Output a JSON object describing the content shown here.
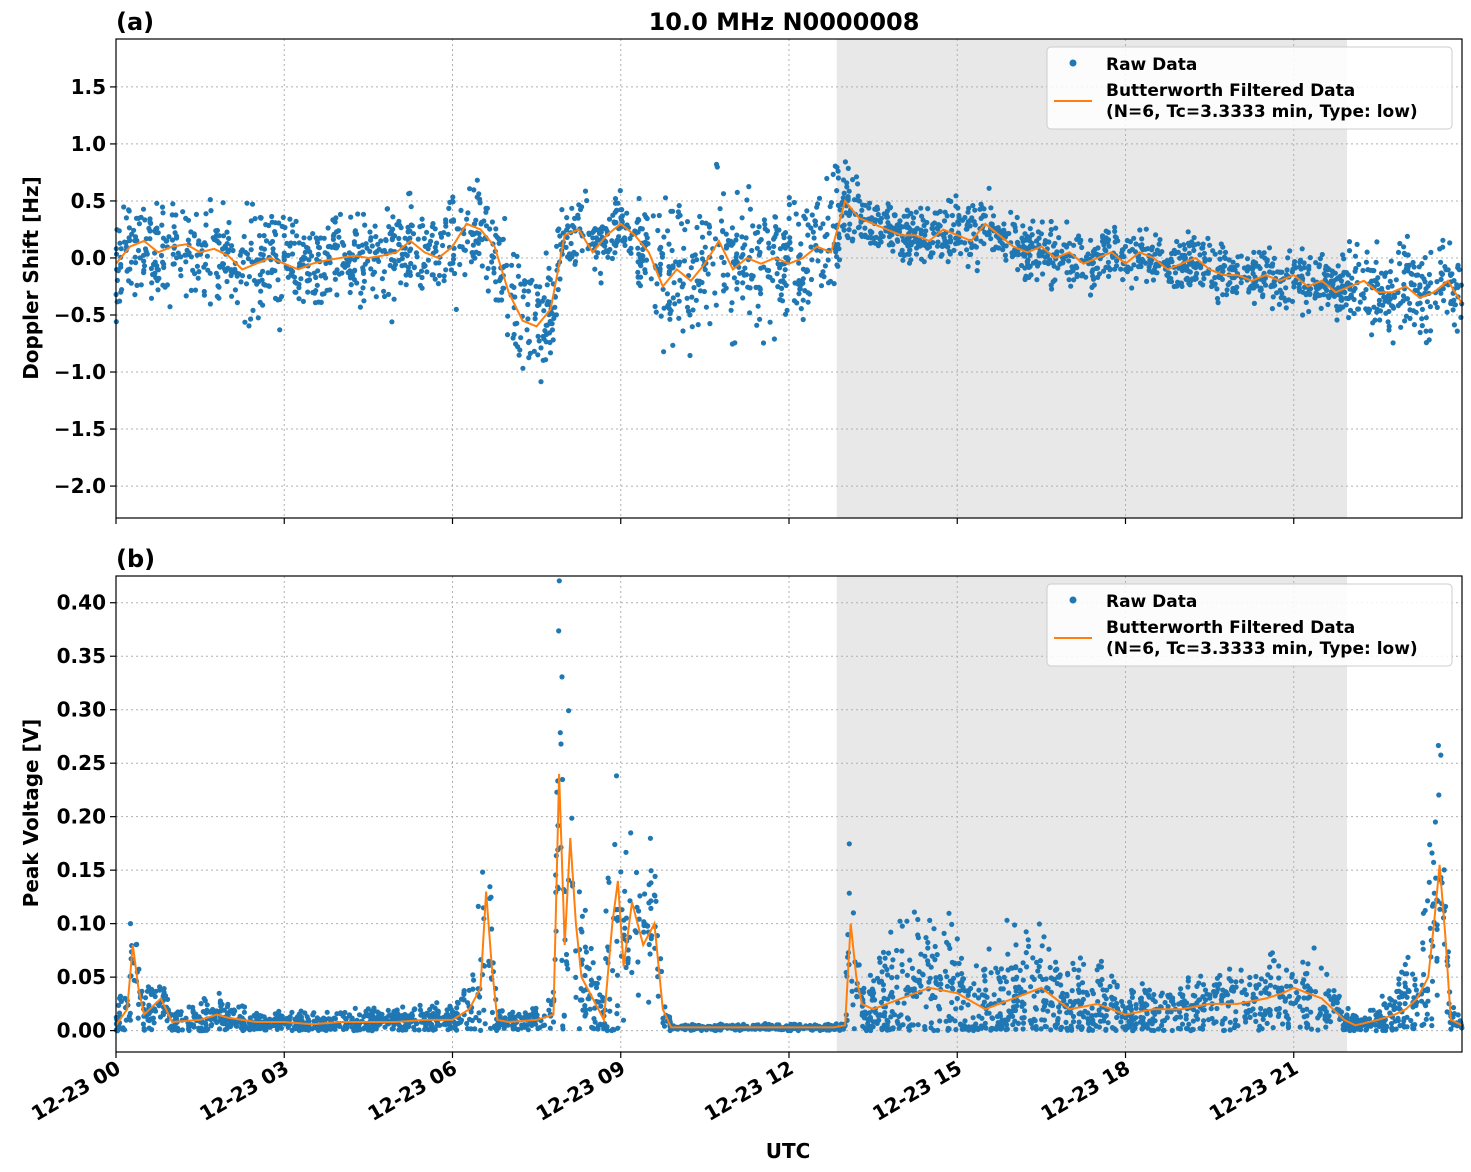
{
  "figure": {
    "title": "10.0 MHz N0000008",
    "xlabel": "UTC"
  },
  "colors": {
    "raw": "#1f77b4",
    "filtered": "#ff7f0e",
    "shade": "#e8e8e8",
    "grid": "#b0b0b0"
  },
  "legend": {
    "raw_label": "Raw Data",
    "filtered_label_line1": "Butterworth Filtered Data",
    "filtered_label_line2": "(N=6, Tc=3.3333 min, Type: low)"
  },
  "chart_data": [
    {
      "type": "scatter",
      "panel_label": "(a)",
      "ylabel": "Doppler Shift [Hz]",
      "xlim": [
        0,
        24
      ],
      "ylim": [
        -2.28,
        1.92
      ],
      "y_ticks": [
        1.5,
        1.0,
        0.5,
        0.0,
        -0.5,
        -1.0,
        -1.5,
        -2.0
      ],
      "y_tick_labels": [
        "1.5",
        "1.0",
        "0.5",
        "0.0",
        "−0.5",
        "−1.0",
        "−1.5",
        "−2.0"
      ],
      "x_ticks": [
        0,
        3,
        6,
        9,
        12,
        15,
        18,
        21
      ],
      "shaded_interval": [
        12.85,
        21.95
      ],
      "grid": true,
      "legend_position": "top-right",
      "filtered": {
        "x": [
          0,
          0.25,
          0.5,
          0.75,
          1,
          1.25,
          1.5,
          1.75,
          2,
          2.25,
          2.5,
          2.75,
          3,
          3.25,
          3.5,
          3.75,
          4,
          4.25,
          4.5,
          4.75,
          5,
          5.25,
          5.5,
          5.75,
          6,
          6.25,
          6.5,
          6.75,
          7,
          7.25,
          7.5,
          7.75,
          8,
          8.25,
          8.5,
          8.75,
          9,
          9.25,
          9.5,
          9.75,
          10,
          10.25,
          10.5,
          10.75,
          11,
          11.25,
          11.5,
          11.75,
          12,
          12.25,
          12.5,
          12.75,
          13,
          13.25,
          13.5,
          13.75,
          14,
          14.25,
          14.5,
          14.75,
          15,
          15.25,
          15.5,
          15.75,
          16,
          16.25,
          16.5,
          16.75,
          17,
          17.25,
          17.5,
          17.75,
          18,
          18.25,
          18.5,
          18.75,
          19,
          19.25,
          19.5,
          19.75,
          20,
          20.25,
          20.5,
          20.75,
          21,
          21.25,
          21.5,
          21.75,
          22,
          22.25,
          22.5,
          22.75,
          23,
          23.25,
          23.5,
          23.75,
          24
        ],
        "y": [
          -0.05,
          0.1,
          0.15,
          0.05,
          0.1,
          0.12,
          0.05,
          0.08,
          0.02,
          -0.1,
          -0.05,
          0.0,
          -0.05,
          -0.1,
          -0.05,
          -0.02,
          0.0,
          0.02,
          0.0,
          0.02,
          0.05,
          0.15,
          0.05,
          0.0,
          0.1,
          0.3,
          0.25,
          0.1,
          -0.3,
          -0.55,
          -0.6,
          -0.45,
          0.2,
          0.25,
          0.05,
          0.2,
          0.3,
          0.2,
          0.05,
          -0.25,
          -0.1,
          -0.2,
          -0.05,
          0.15,
          -0.1,
          0.0,
          -0.05,
          0.0,
          -0.05,
          0.0,
          0.1,
          0.05,
          0.5,
          0.35,
          0.3,
          0.25,
          0.2,
          0.2,
          0.15,
          0.25,
          0.2,
          0.15,
          0.3,
          0.2,
          0.1,
          0.05,
          0.1,
          0.0,
          0.05,
          -0.05,
          0.0,
          0.05,
          -0.05,
          0.05,
          0.0,
          -0.1,
          -0.05,
          0.0,
          -0.1,
          -0.15,
          -0.15,
          -0.2,
          -0.15,
          -0.2,
          -0.15,
          -0.25,
          -0.2,
          -0.3,
          -0.25,
          -0.2,
          -0.3,
          -0.3,
          -0.25,
          -0.35,
          -0.3,
          -0.2,
          -0.4
        ],
        "spread": [
          0.3,
          0.3,
          0.35,
          0.3,
          0.35,
          0.3,
          0.3,
          0.35,
          0.3,
          0.35,
          0.35,
          0.3,
          0.4,
          0.35,
          0.3,
          0.3,
          0.3,
          0.3,
          0.3,
          0.35,
          0.35,
          0.3,
          0.3,
          0.3,
          0.35,
          0.35,
          0.3,
          0.35,
          0.4,
          0.4,
          0.4,
          0.35,
          0.25,
          0.25,
          0.25,
          0.2,
          0.2,
          0.25,
          0.3,
          0.45,
          0.5,
          0.5,
          0.55,
          0.5,
          0.5,
          0.45,
          0.45,
          0.4,
          0.45,
          0.4,
          0.45,
          0.45,
          0.3,
          0.2,
          0.2,
          0.2,
          0.2,
          0.2,
          0.2,
          0.2,
          0.2,
          0.2,
          0.2,
          0.2,
          0.2,
          0.2,
          0.2,
          0.2,
          0.2,
          0.18,
          0.18,
          0.18,
          0.18,
          0.18,
          0.18,
          0.18,
          0.18,
          0.18,
          0.18,
          0.18,
          0.18,
          0.18,
          0.18,
          0.18,
          0.2,
          0.2,
          0.2,
          0.2,
          0.25,
          0.25,
          0.3,
          0.3,
          0.3,
          0.3,
          0.3,
          0.3,
          0.35
        ]
      }
    },
    {
      "type": "scatter",
      "panel_label": "(b)",
      "ylabel": "Peak Voltage [V]",
      "xlim": [
        0,
        24
      ],
      "ylim": [
        -0.02,
        0.425
      ],
      "y_ticks": [
        0.4,
        0.35,
        0.3,
        0.25,
        0.2,
        0.15,
        0.1,
        0.05,
        0.0
      ],
      "y_tick_labels": [
        "0.40",
        "0.35",
        "0.30",
        "0.25",
        "0.20",
        "0.15",
        "0.10",
        "0.05",
        "0.00"
      ],
      "x_ticks": [
        0,
        3,
        6,
        9,
        12,
        15,
        18,
        21
      ],
      "x_tick_labels": [
        "12-23 00",
        "12-23 03",
        "12-23 06",
        "12-23 09",
        "12-23 12",
        "12-23 15",
        "12-23 18",
        "12-23 21"
      ],
      "shaded_interval": [
        12.85,
        21.95
      ],
      "grid": true,
      "legend_position": "top-right",
      "filtered": {
        "x": [
          0,
          0.2,
          0.3,
          0.4,
          0.5,
          0.6,
          0.8,
          1.0,
          1.5,
          1.8,
          2.0,
          2.5,
          3.0,
          3.5,
          4.0,
          4.5,
          5.0,
          5.5,
          6.0,
          6.3,
          6.5,
          6.6,
          6.7,
          6.8,
          7.0,
          7.5,
          7.8,
          7.9,
          8.0,
          8.1,
          8.2,
          8.3,
          8.5,
          8.7,
          8.85,
          8.95,
          9.05,
          9.2,
          9.4,
          9.6,
          9.75,
          9.9,
          10.5,
          11.0,
          11.5,
          12.0,
          12.5,
          12.8,
          13.0,
          13.1,
          13.2,
          13.3,
          13.5,
          14.0,
          14.5,
          15.0,
          15.5,
          16.0,
          16.5,
          17.0,
          17.5,
          18.0,
          18.5,
          19.0,
          19.5,
          20.0,
          20.5,
          20.8,
          21.0,
          21.5,
          21.9,
          22.1,
          22.5,
          22.8,
          23.0,
          23.2,
          23.4,
          23.5,
          23.6,
          23.7,
          23.8,
          24.0
        ],
        "y": [
          0.005,
          0.02,
          0.08,
          0.04,
          0.015,
          0.02,
          0.03,
          0.008,
          0.01,
          0.015,
          0.012,
          0.008,
          0.008,
          0.006,
          0.008,
          0.008,
          0.008,
          0.01,
          0.01,
          0.02,
          0.04,
          0.13,
          0.06,
          0.01,
          0.008,
          0.01,
          0.015,
          0.24,
          0.08,
          0.18,
          0.1,
          0.05,
          0.03,
          0.01,
          0.1,
          0.14,
          0.06,
          0.12,
          0.08,
          0.1,
          0.02,
          0.003,
          0.003,
          0.003,
          0.003,
          0.003,
          0.003,
          0.003,
          0.005,
          0.1,
          0.05,
          0.025,
          0.02,
          0.03,
          0.04,
          0.035,
          0.02,
          0.03,
          0.04,
          0.02,
          0.025,
          0.015,
          0.02,
          0.02,
          0.025,
          0.025,
          0.03,
          0.035,
          0.04,
          0.03,
          0.01,
          0.005,
          0.01,
          0.015,
          0.02,
          0.03,
          0.05,
          0.1,
          0.155,
          0.09,
          0.01,
          0.005
        ],
        "spread": [
          0.01,
          0.02,
          0.06,
          0.02,
          0.01,
          0.015,
          0.015,
          0.008,
          0.012,
          0.015,
          0.01,
          0.008,
          0.007,
          0.006,
          0.008,
          0.009,
          0.009,
          0.01,
          0.01,
          0.02,
          0.05,
          0.14,
          0.05,
          0.01,
          0.007,
          0.008,
          0.02,
          0.16,
          0.12,
          0.1,
          0.08,
          0.06,
          0.04,
          0.02,
          0.15,
          0.1,
          0.07,
          0.08,
          0.06,
          0.07,
          0.02,
          0.002,
          0.002,
          0.002,
          0.002,
          0.002,
          0.002,
          0.002,
          0.004,
          0.09,
          0.04,
          0.02,
          0.03,
          0.05,
          0.05,
          0.04,
          0.03,
          0.06,
          0.05,
          0.03,
          0.03,
          0.02,
          0.02,
          0.02,
          0.02,
          0.025,
          0.03,
          0.035,
          0.04,
          0.03,
          0.01,
          0.005,
          0.01,
          0.02,
          0.03,
          0.04,
          0.08,
          0.12,
          0.11,
          0.06,
          0.01,
          0.005
        ]
      }
    }
  ]
}
